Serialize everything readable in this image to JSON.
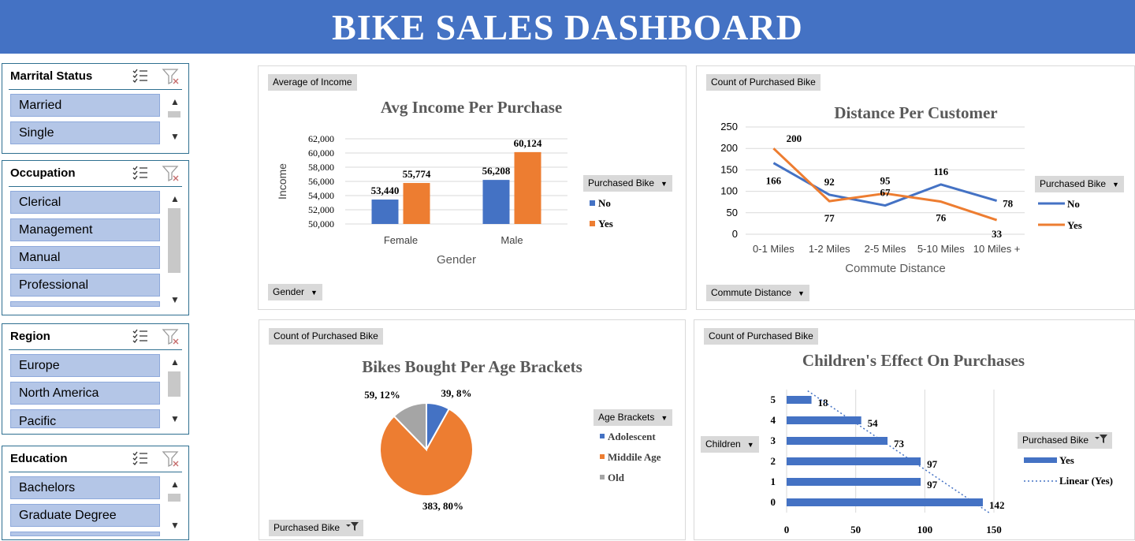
{
  "header": {
    "title": "BIKE SALES DASHBOARD"
  },
  "slicers": {
    "marital": {
      "title": "Marrital Status",
      "items": [
        "Married",
        "Single"
      ]
    },
    "occupation": {
      "title": "Occupation",
      "items": [
        "Clerical",
        "Management",
        "Manual",
        "Professional"
      ]
    },
    "region": {
      "title": "Region",
      "items": [
        "Europe",
        "North America",
        "Pacific"
      ]
    },
    "education": {
      "title": "Education",
      "items": [
        "Bachelors",
        "Graduate Degree"
      ]
    }
  },
  "icons": {
    "multi_select": "multi-select-icon",
    "clear_filter": "clear-filter-icon",
    "dropdown": "dropdown-arrow-icon",
    "filter": "filter-icon"
  },
  "colors": {
    "banner": "#4472c4",
    "no": "#4472c4",
    "yes": "#ed7d31",
    "old": "#a5a5a5",
    "slicer_item": "#b4c6e7"
  },
  "panels": {
    "income": {
      "value_tag": "Average of Income",
      "axis_tag": "Gender",
      "legend_tag": "Purchased Bike"
    },
    "distance": {
      "value_tag": "Count of Purchased Bike",
      "axis_tag": "Commute Distance",
      "legend_tag": "Purchased Bike"
    },
    "age": {
      "value_tag": "Count of Purchased Bike",
      "filter_tag": "Purchased Bike",
      "legend_tag": "Age Brackets"
    },
    "children": {
      "value_tag": "Count of Purchased Bike",
      "axis_tag": "Children",
      "legend_tag": "Purchased Bike"
    }
  },
  "chart_data": [
    {
      "id": "income",
      "type": "bar",
      "title": "Avg Income Per Purchase",
      "xlabel": "Gender",
      "ylabel": "Income",
      "categories": [
        "Female",
        "Male"
      ],
      "series": [
        {
          "name": "No",
          "values": [
            53440,
            56208
          ],
          "labels": [
            "53,440",
            "56,208"
          ]
        },
        {
          "name": "Yes",
          "values": [
            55774,
            60124
          ],
          "labels": [
            "55,774",
            "60,124"
          ]
        }
      ],
      "ylim": [
        50000,
        62000
      ],
      "yticks": [
        50000,
        52000,
        54000,
        56000,
        58000,
        60000,
        62000
      ],
      "yticklabels": [
        "50,000",
        "52,000",
        "54,000",
        "56,000",
        "58,000",
        "60,000",
        "62,000"
      ],
      "legend": "right",
      "grid": true
    },
    {
      "id": "distance",
      "type": "line",
      "title": "Distance Per Customer",
      "xlabel": "Commute Distance",
      "ylabel": "",
      "categories": [
        "0-1 Miles",
        "1-2 Miles",
        "2-5 Miles",
        "5-10 Miles",
        "10 Miles +"
      ],
      "series": [
        {
          "name": "No",
          "values": [
            166,
            92,
            67,
            116,
            78
          ]
        },
        {
          "name": "Yes",
          "values": [
            200,
            77,
            95,
            76,
            33
          ]
        }
      ],
      "ylim": [
        0,
        250
      ],
      "yticks": [
        0,
        50,
        100,
        150,
        200,
        250
      ],
      "legend": "right",
      "grid": true
    },
    {
      "id": "age",
      "type": "pie",
      "title": "Bikes Bought Per Age Brackets",
      "labels": [
        "Adolescent",
        "Middile Age",
        "Old"
      ],
      "values": [
        39,
        383,
        59
      ],
      "slice_labels": [
        "39, 8%",
        "383, 80%",
        "59, 12%"
      ],
      "legend": "right"
    },
    {
      "id": "children",
      "type": "bar",
      "orientation": "horizontal",
      "title": "Children's  Effect On Purchases",
      "categories": [
        "0",
        "1",
        "2",
        "3",
        "4",
        "5"
      ],
      "series": [
        {
          "name": "Yes",
          "values": [
            142,
            97,
            97,
            73,
            54,
            18
          ]
        }
      ],
      "trendline": "Linear (Yes)",
      "xlim": [
        0,
        150
      ],
      "xticks": [
        0,
        50,
        100,
        150
      ],
      "legend": "right",
      "grid": true
    }
  ]
}
